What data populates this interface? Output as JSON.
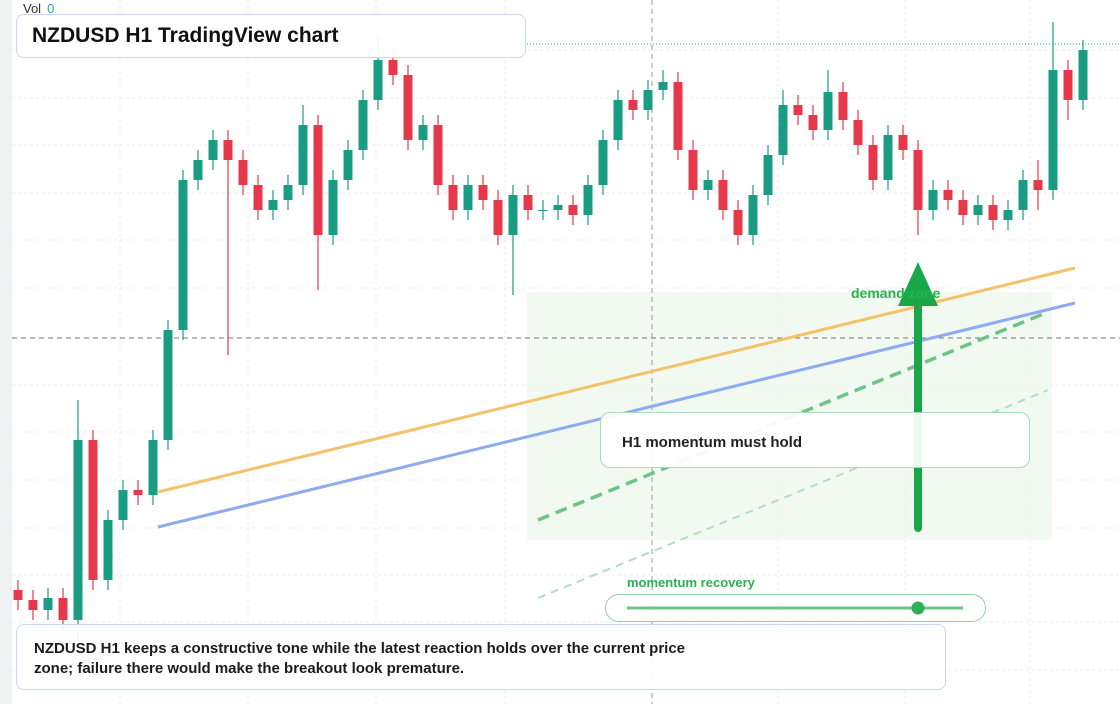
{
  "header": {
    "title": "NZDUSD H1 TradingView chart"
  },
  "volume": {
    "label": "Vol",
    "value": 0
  },
  "chart_data": {
    "type": "candlestick",
    "ylim": [
      0,
      704
    ],
    "up_color": "#1a9c82",
    "down_color": "#e5384a",
    "ohlc": [
      [
        114,
        124,
        94,
        104
      ],
      [
        104,
        114,
        84,
        94
      ],
      [
        94,
        116,
        84,
        106
      ],
      [
        106,
        116,
        74,
        84
      ],
      [
        84,
        304,
        64,
        264
      ],
      [
        264,
        274,
        114,
        124
      ],
      [
        124,
        194,
        114,
        184
      ],
      [
        184,
        224,
        174,
        214
      ],
      [
        214,
        224,
        199,
        209
      ],
      [
        209,
        274,
        199,
        264
      ],
      [
        264,
        384,
        254,
        374
      ],
      [
        374,
        534,
        364,
        524
      ],
      [
        524,
        554,
        514,
        544
      ],
      [
        544,
        574,
        534,
        564
      ],
      [
        564,
        574,
        349,
        544
      ],
      [
        544,
        554,
        509,
        519
      ],
      [
        519,
        529,
        484,
        494
      ],
      [
        494,
        514,
        484,
        504
      ],
      [
        504,
        529,
        494,
        519
      ],
      [
        519,
        599,
        509,
        579
      ],
      [
        579,
        589,
        414,
        469
      ],
      [
        469,
        534,
        459,
        524
      ],
      [
        524,
        564,
        514,
        554
      ],
      [
        554,
        614,
        544,
        604
      ],
      [
        604,
        669,
        594,
        644
      ],
      [
        644,
        654,
        619,
        629
      ],
      [
        629,
        639,
        554,
        564
      ],
      [
        564,
        589,
        554,
        579
      ],
      [
        579,
        589,
        509,
        519
      ],
      [
        519,
        529,
        484,
        494
      ],
      [
        494,
        529,
        484,
        519
      ],
      [
        519,
        529,
        494,
        504
      ],
      [
        504,
        514,
        459,
        469
      ],
      [
        469,
        519,
        409,
        509
      ],
      [
        509,
        519,
        484,
        494
      ],
      [
        494,
        504,
        484,
        494
      ],
      [
        494,
        509,
        484,
        499
      ],
      [
        499,
        509,
        479,
        489
      ],
      [
        489,
        529,
        479,
        519
      ],
      [
        519,
        574,
        509,
        564
      ],
      [
        564,
        614,
        554,
        604
      ],
      [
        604,
        614,
        584,
        594
      ],
      [
        594,
        624,
        584,
        614
      ],
      [
        614,
        634,
        604,
        622
      ],
      [
        622,
        632,
        544,
        554
      ],
      [
        554,
        564,
        504,
        514
      ],
      [
        514,
        534,
        504,
        524
      ],
      [
        524,
        534,
        484,
        494
      ],
      [
        494,
        504,
        459,
        469
      ],
      [
        469,
        519,
        459,
        509
      ],
      [
        509,
        559,
        499,
        549
      ],
      [
        549,
        614,
        539,
        599
      ],
      [
        599,
        609,
        579,
        589
      ],
      [
        589,
        599,
        564,
        574
      ],
      [
        574,
        634,
        564,
        612
      ],
      [
        612,
        622,
        574,
        584
      ],
      [
        584,
        594,
        549,
        559
      ],
      [
        559,
        569,
        514,
        524
      ],
      [
        524,
        579,
        514,
        569
      ],
      [
        569,
        579,
        544,
        554
      ],
      [
        554,
        564,
        469,
        494
      ],
      [
        494,
        524,
        484,
        514
      ],
      [
        514,
        524,
        494,
        504
      ],
      [
        504,
        514,
        479,
        489
      ],
      [
        489,
        509,
        479,
        499
      ],
      [
        499,
        509,
        474,
        484
      ],
      [
        484,
        504,
        474,
        494
      ],
      [
        494,
        534,
        484,
        524
      ],
      [
        524,
        544,
        494,
        514
      ],
      [
        514,
        682,
        504,
        634
      ],
      [
        634,
        644,
        584,
        604
      ],
      [
        604,
        664,
        594,
        654
      ]
    ]
  },
  "annotations": {
    "zone": "demand zone",
    "callout": "H1 momentum must hold",
    "slider": "momentum recovery"
  },
  "note": "NZDUSD H1 keeps a constructive tone while the latest reaction holds over the current price zone; failure there would make the breakout look premature."
}
